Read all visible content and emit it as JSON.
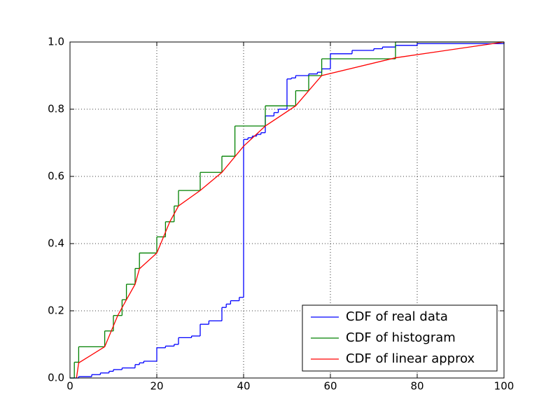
{
  "chart_data": {
    "type": "line",
    "xlim": [
      0,
      100
    ],
    "xticks": [
      0,
      20,
      40,
      60,
      80,
      100
    ],
    "ylim": [
      0,
      1
    ],
    "yticks": [
      {
        "value": 0,
        "label": "0.0"
      },
      0.2,
      0.4,
      0.6,
      0.8,
      {
        "value": 1,
        "label": "1.0"
      }
    ],
    "grid": true,
    "legend": "lower right",
    "series": [
      {
        "name": "CDF of real data",
        "color": "#0000ff",
        "step": true,
        "x": [
          0,
          2,
          5,
          7,
          9,
          10,
          12,
          15,
          16,
          17,
          20,
          20,
          22,
          24,
          25,
          28,
          30,
          32,
          35,
          36,
          37,
          39,
          40,
          41,
          42,
          43,
          44,
          45,
          47,
          48,
          50,
          51,
          52,
          55,
          57,
          58,
          60,
          65,
          70,
          72,
          75,
          80,
          100
        ],
        "values": [
          0.0,
          0.004,
          0.01,
          0.015,
          0.02,
          0.025,
          0.03,
          0.04,
          0.045,
          0.05,
          0.053,
          0.09,
          0.095,
          0.1,
          0.12,
          0.125,
          0.16,
          0.17,
          0.21,
          0.22,
          0.23,
          0.24,
          0.71,
          0.715,
          0.72,
          0.725,
          0.73,
          0.78,
          0.79,
          0.8,
          0.89,
          0.893,
          0.9,
          0.905,
          0.91,
          0.92,
          0.965,
          0.975,
          0.98,
          0.985,
          0.99,
          0.995,
          1.0
        ]
      },
      {
        "name": "CDF of histogram",
        "color": "#008000",
        "step": true,
        "x": [
          0,
          1,
          2,
          8,
          10,
          12,
          13,
          15,
          16,
          20,
          22,
          24,
          25,
          30,
          35,
          38,
          45,
          52,
          55,
          58,
          75,
          100
        ],
        "values": [
          0.0,
          0.047,
          0.093,
          0.14,
          0.186,
          0.233,
          0.279,
          0.326,
          0.372,
          0.42,
          0.465,
          0.512,
          0.558,
          0.612,
          0.66,
          0.75,
          0.81,
          0.855,
          0.9,
          0.95,
          1.0,
          1.0
        ]
      },
      {
        "name": "CDF of linear approx",
        "color": "#ff0000",
        "step": false,
        "x": [
          1.5,
          2,
          8,
          11,
          13,
          15,
          16,
          20,
          23,
          25,
          30,
          35,
          40,
          45,
          52,
          58,
          75,
          100
        ],
        "values": [
          0.0,
          0.045,
          0.093,
          0.186,
          0.233,
          0.279,
          0.325,
          0.372,
          0.465,
          0.512,
          0.558,
          0.612,
          0.69,
          0.75,
          0.81,
          0.9,
          0.953,
          1.0
        ]
      }
    ]
  }
}
